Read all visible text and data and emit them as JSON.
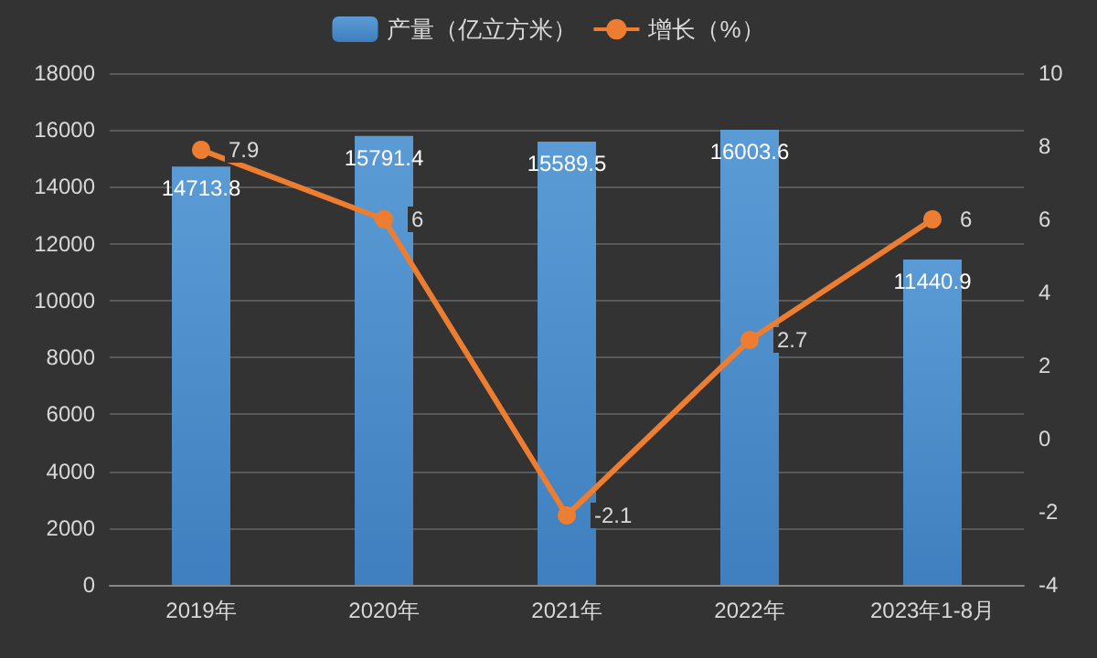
{
  "chart_data": {
    "type": "bar",
    "categories": [
      "2019年",
      "2020年",
      "2021年",
      "2022年",
      "2023年1-8月"
    ],
    "series": [
      {
        "name": "产量（亿立方米）",
        "color": "#5b9bd5",
        "values": [
          14713.8,
          15791.4,
          15589.5,
          16003.6,
          11440.9
        ]
      },
      {
        "name": "增长（%）",
        "type": "line",
        "axis": "y2",
        "color": "#ed7d31",
        "values": [
          7.9,
          6,
          -2.1,
          2.7,
          6
        ]
      }
    ],
    "ylim": [
      0,
      18000
    ],
    "yticks": [
      0,
      2000,
      4000,
      6000,
      8000,
      10000,
      12000,
      14000,
      16000,
      18000
    ],
    "y2lim": [
      -4,
      10
    ],
    "y2ticks": [
      -4,
      -2,
      0,
      2,
      4,
      6,
      8,
      10
    ],
    "grid": "y",
    "legend": "top",
    "data_labels": true,
    "marker": "circle",
    "line_style": "solid"
  }
}
